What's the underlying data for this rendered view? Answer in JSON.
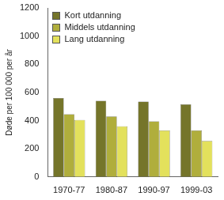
{
  "chart_data": {
    "type": "bar",
    "y_label": "Døde per 100 000 per år",
    "categories": [
      "1970-77",
      "1980-87",
      "1990-97",
      "1999-03"
    ],
    "series": [
      {
        "name": "Kort utdanning",
        "color": "#75752a",
        "values": [
          560,
          540,
          535,
          515
        ]
      },
      {
        "name": "Middels utdanning",
        "color": "#b0ae3c",
        "values": [
          445,
          430,
          395,
          330
        ]
      },
      {
        "name": "Lang utdanning",
        "color": "#e3e15c",
        "values": [
          405,
          360,
          330,
          255
        ]
      }
    ],
    "ylim": [
      0,
      1200
    ],
    "yticks": [
      0,
      200,
      400,
      600,
      800,
      1000,
      1200
    ],
    "grid": false,
    "legend": "upper left"
  }
}
